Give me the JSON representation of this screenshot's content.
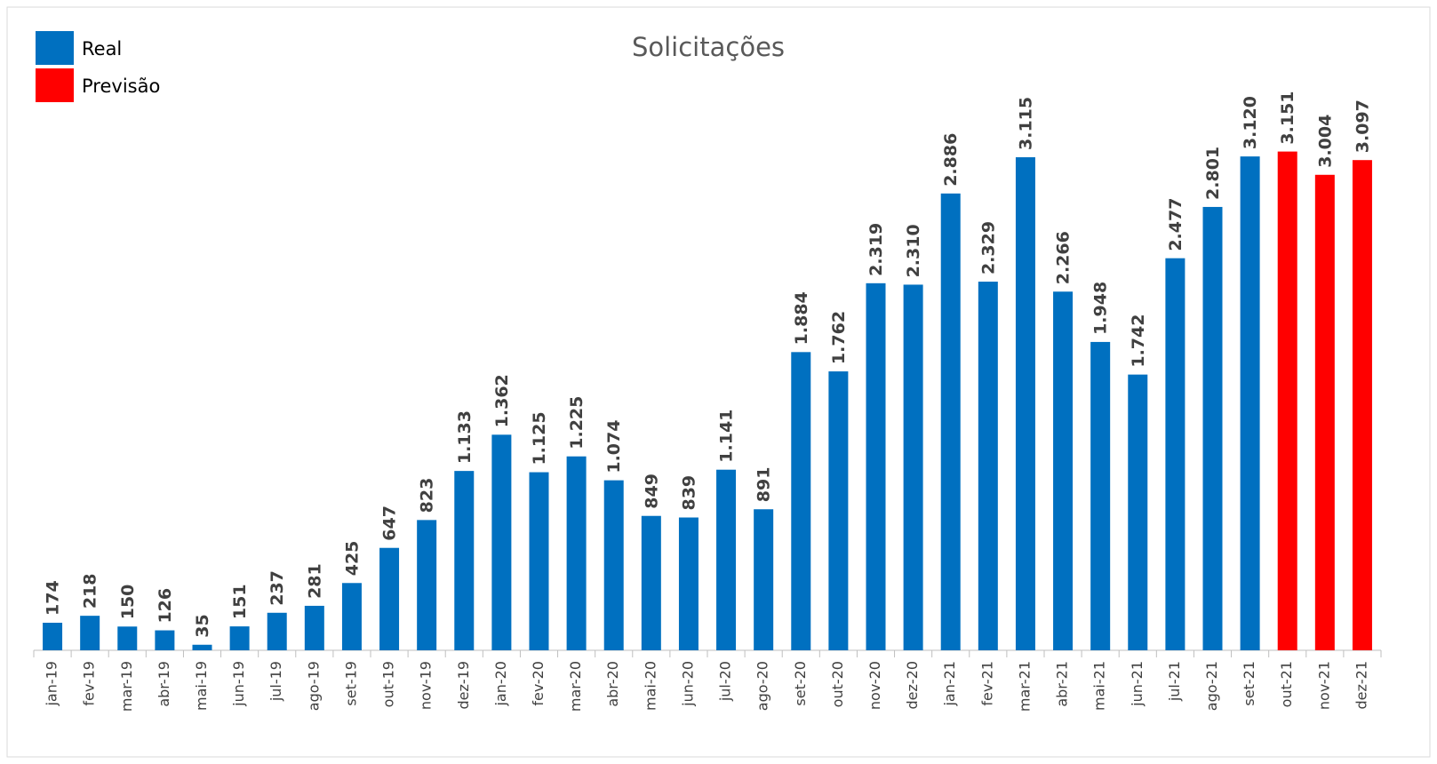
{
  "chart_data": {
    "type": "bar",
    "title": "Solicitações",
    "categories": [
      "jan-19",
      "fev-19",
      "mar-19",
      "abr-19",
      "mai-19",
      "jun-19",
      "jul-19",
      "ago-19",
      "set-19",
      "out-19",
      "nov-19",
      "dez-19",
      "jan-20",
      "fev-20",
      "mar-20",
      "abr-20",
      "mai-20",
      "jun-20",
      "jul-20",
      "ago-20",
      "set-20",
      "out-20",
      "nov-20",
      "dez-20",
      "jan-21",
      "fev-21",
      "mar-21",
      "abr-21",
      "mai-21",
      "jun-21",
      "jul-21",
      "ago-21",
      "set-21",
      "out-21",
      "nov-21",
      "dez-21"
    ],
    "series": [
      {
        "name": "Real",
        "color": "#0070c0",
        "values": [
          174,
          218,
          150,
          126,
          35,
          151,
          237,
          281,
          425,
          647,
          823,
          1133,
          1362,
          1125,
          1225,
          1074,
          849,
          839,
          1141,
          891,
          1884,
          1762,
          2319,
          2310,
          2886,
          2329,
          3115,
          2266,
          1948,
          1742,
          2477,
          2801,
          3120,
          null,
          null,
          null
        ],
        "value_labels": [
          "174",
          "218",
          "150",
          "126",
          "35",
          "151",
          "237",
          "281",
          "425",
          "647",
          "823",
          "1.133",
          "1.362",
          "1.125",
          "1.225",
          "1.074",
          "849",
          "839",
          "1.141",
          "891",
          "1.884",
          "1.762",
          "2.319",
          "2.310",
          "2.886",
          "2.329",
          "3.115",
          "2.266",
          "1.948",
          "1.742",
          "2.477",
          "2.801",
          "3.120",
          null,
          null,
          null
        ]
      },
      {
        "name": "Previsão",
        "color": "#ff0000",
        "values": [
          null,
          null,
          null,
          null,
          null,
          null,
          null,
          null,
          null,
          null,
          null,
          null,
          null,
          null,
          null,
          null,
          null,
          null,
          null,
          null,
          null,
          null,
          null,
          null,
          null,
          null,
          null,
          null,
          null,
          null,
          null,
          null,
          null,
          3151,
          3004,
          3097
        ],
        "value_labels": [
          null,
          null,
          null,
          null,
          null,
          null,
          null,
          null,
          null,
          null,
          null,
          null,
          null,
          null,
          null,
          null,
          null,
          null,
          null,
          null,
          null,
          null,
          null,
          null,
          null,
          null,
          null,
          null,
          null,
          null,
          null,
          null,
          null,
          "3.151",
          "3.004",
          "3.097"
        ]
      }
    ],
    "legend": "top-left"
  }
}
